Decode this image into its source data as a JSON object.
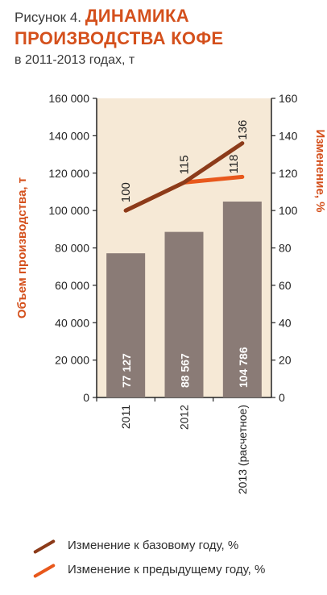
{
  "figure": {
    "label": "Рисунок 4.",
    "title_line1": "ДИНАМИКА",
    "title_line2": "ПРОИЗВОДСТВА КОФЕ",
    "subtitle": "в 2011-2013 годах, т"
  },
  "colors": {
    "plot_bg": "#f6e9d6",
    "bar": "#8a7b76",
    "bar_text": "#ffffff",
    "base_line": "#8c3b1a",
    "prev_line": "#e8581c",
    "axis": "#222222",
    "title_accent": "#d4501c"
  },
  "chart_data": {
    "type": "bar",
    "categories": [
      "2011",
      "2012",
      "2013 (расчетное)"
    ],
    "bars": {
      "values": [
        77127,
        88567,
        104786
      ],
      "value_labels": [
        "77 127",
        "88 567",
        "104 786"
      ]
    },
    "lines": [
      {
        "name": "Изменение к базовому году, %",
        "x_index": [
          0,
          1,
          2
        ],
        "values": [
          100,
          115,
          136
        ],
        "labels": [
          "100",
          "115",
          "136"
        ],
        "color": "#8c3b1a"
      },
      {
        "name": "Изменение к предыдущему году, %",
        "x_index": [
          0,
          1,
          2
        ],
        "values": [
          100,
          115,
          118
        ],
        "labels": [
          "",
          "",
          "118"
        ],
        "color": "#e8581c"
      }
    ],
    "ylabel_left": "Объем производства, т",
    "ylabel_right": "Изменение, %",
    "ylim_left": [
      0,
      160000
    ],
    "ylim_right": [
      0,
      160
    ],
    "yticks_left": [
      "0",
      "20 000",
      "40 000",
      "60 000",
      "80 000",
      "100 000",
      "120 000",
      "140 000",
      "160 000"
    ],
    "yticks_right": [
      "0",
      "20",
      "40",
      "60",
      "80",
      "100",
      "120",
      "140",
      "160"
    ],
    "legend_position": "bottom",
    "grid": false
  }
}
